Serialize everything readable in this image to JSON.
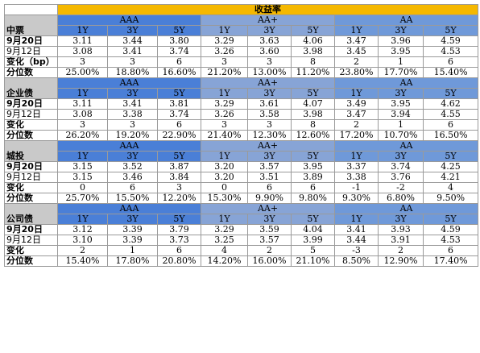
{
  "title": "收益率",
  "tenors": [
    "1Y",
    "3Y",
    "5Y"
  ],
  "grades": [
    "AAA",
    "AA+",
    "AA"
  ],
  "colors": {
    "title": "#f5b800",
    "AAA": "#4a7fd7",
    "AA+": "#87a4d6",
    "AA": "#6f99d9",
    "label": "#c9c9c9"
  },
  "sections": [
    {
      "name": "中票",
      "rows": [
        {
          "label": "9月20日",
          "bold": true,
          "values": [
            "3.11",
            "3.44",
            "3.80",
            "3.29",
            "3.63",
            "4.06",
            "3.47",
            "3.96",
            "4.59"
          ]
        },
        {
          "label": "9月12日",
          "bold": false,
          "values": [
            "3.08",
            "3.41",
            "3.74",
            "3.26",
            "3.60",
            "3.98",
            "3.45",
            "3.95",
            "4.53"
          ]
        },
        {
          "label": "变化（bp）",
          "bold": true,
          "values": [
            "3",
            "3",
            "6",
            "3",
            "3",
            "8",
            "2",
            "1",
            "6"
          ]
        },
        {
          "label": "分位数",
          "bold": true,
          "values": [
            "25.00%",
            "18.80%",
            "16.60%",
            "21.20%",
            "13.00%",
            "11.20%",
            "23.80%",
            "17.70%",
            "15.40%"
          ]
        }
      ]
    },
    {
      "name": "企业债",
      "rows": [
        {
          "label": "9月20日",
          "bold": true,
          "values": [
            "3.11",
            "3.41",
            "3.81",
            "3.29",
            "3.61",
            "4.07",
            "3.49",
            "3.95",
            "4.62"
          ]
        },
        {
          "label": "9月12日",
          "bold": false,
          "values": [
            "3.08",
            "3.38",
            "3.74",
            "3.26",
            "3.58",
            "3.98",
            "3.47",
            "3.94",
            "4.55"
          ]
        },
        {
          "label": "变化",
          "bold": true,
          "values": [
            "3",
            "3",
            "6",
            "3",
            "3",
            "8",
            "2",
            "1",
            "6"
          ]
        },
        {
          "label": "分位数",
          "bold": true,
          "values": [
            "26.20%",
            "19.20%",
            "22.90%",
            "21.40%",
            "12.30%",
            "12.60%",
            "17.20%",
            "10.70%",
            "16.50%"
          ]
        }
      ]
    },
    {
      "name": "城投",
      "rows": [
        {
          "label": "9月20日",
          "bold": true,
          "values": [
            "3.15",
            "3.52",
            "3.87",
            "3.20",
            "3.57",
            "3.95",
            "3.37",
            "3.74",
            "4.25"
          ]
        },
        {
          "label": "9月12日",
          "bold": false,
          "values": [
            "3.15",
            "3.46",
            "3.84",
            "3.20",
            "3.51",
            "3.89",
            "3.38",
            "3.76",
            "4.21"
          ]
        },
        {
          "label": "变化",
          "bold": true,
          "values": [
            "0",
            "6",
            "3",
            "0",
            "6",
            "6",
            "-1",
            "-2",
            "4"
          ]
        },
        {
          "label": "分位数",
          "bold": true,
          "values": [
            "25.70%",
            "15.50%",
            "12.20%",
            "15.30%",
            "9.90%",
            "9.80%",
            "9.30%",
            "6.80%",
            "9.50%"
          ]
        }
      ]
    },
    {
      "name": "公司债",
      "rows": [
        {
          "label": "9月20日",
          "bold": true,
          "values": [
            "3.12",
            "3.39",
            "3.79",
            "3.29",
            "3.59",
            "4.04",
            "3.41",
            "3.93",
            "4.59"
          ]
        },
        {
          "label": "9月12日",
          "bold": false,
          "values": [
            "3.10",
            "3.39",
            "3.73",
            "3.25",
            "3.57",
            "3.99",
            "3.44",
            "3.91",
            "4.53"
          ]
        },
        {
          "label": "变化",
          "bold": true,
          "values": [
            "2",
            "1",
            "6",
            "4",
            "2",
            "5",
            "-3",
            "2",
            "6"
          ]
        },
        {
          "label": "分位数",
          "bold": true,
          "values": [
            "15.40%",
            "17.80%",
            "20.80%",
            "14.20%",
            "16.00%",
            "21.10%",
            "8.50%",
            "12.90%",
            "17.40%"
          ]
        }
      ]
    }
  ]
}
